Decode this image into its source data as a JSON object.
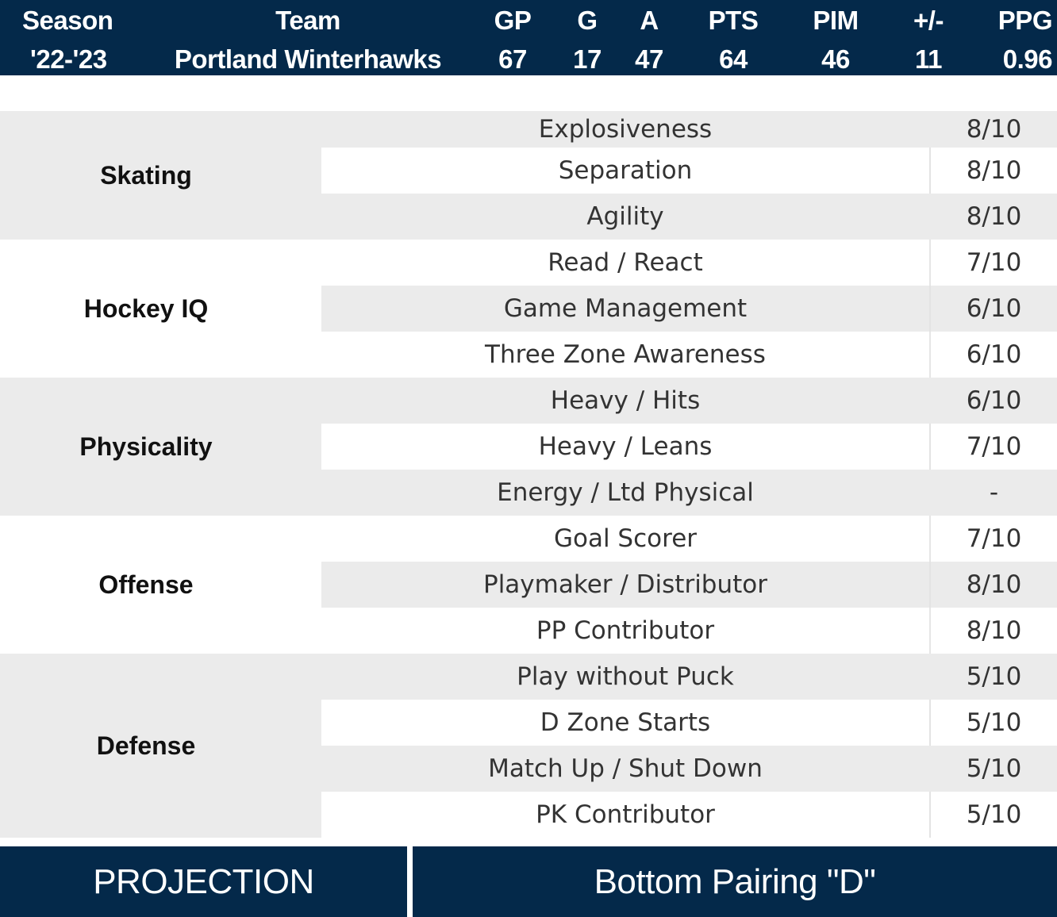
{
  "stats": {
    "headers": [
      "Season",
      "Team",
      "GP",
      "G",
      "A",
      "PTS",
      "PIM",
      "+/-",
      "PPG"
    ],
    "values": [
      "'22-'23",
      "Portland Winterhawks",
      "67",
      "17",
      "47",
      "64",
      "46",
      "11",
      "0.96"
    ]
  },
  "groups": [
    {
      "category": "Skating",
      "skills": [
        {
          "name": "Explosiveness",
          "score": "8/10"
        },
        {
          "name": "Separation",
          "score": "8/10"
        },
        {
          "name": "Agility",
          "score": "8/10"
        }
      ]
    },
    {
      "category": "Hockey IQ",
      "skills": [
        {
          "name": "Read / React",
          "score": "7/10"
        },
        {
          "name": "Game Management",
          "score": "6/10"
        },
        {
          "name": "Three Zone Awareness",
          "score": "6/10"
        }
      ]
    },
    {
      "category": "Physicality",
      "skills": [
        {
          "name": "Heavy / Hits",
          "score": "6/10"
        },
        {
          "name": "Heavy / Leans",
          "score": "7/10"
        },
        {
          "name": "Energy / Ltd Physical",
          "score": "-"
        }
      ]
    },
    {
      "category": "Offense",
      "skills": [
        {
          "name": "Goal Scorer",
          "score": "7/10"
        },
        {
          "name": "Playmaker / Distributor",
          "score": "8/10"
        },
        {
          "name": "PP Contributor",
          "score": "8/10"
        }
      ]
    },
    {
      "category": "Defense",
      "skills": [
        {
          "name": "Play without Puck",
          "score": "5/10"
        },
        {
          "name": "D Zone Starts",
          "score": "5/10"
        },
        {
          "name": "Match Up / Shut Down",
          "score": "5/10"
        },
        {
          "name": "PK Contributor",
          "score": "5/10"
        }
      ]
    }
  ],
  "footer": {
    "projection_label": "PROJECTION",
    "projection_value": "Bottom Pairing \"D\""
  },
  "colors": {
    "navy": "#04294a",
    "row_gray": "#ebebeb"
  }
}
